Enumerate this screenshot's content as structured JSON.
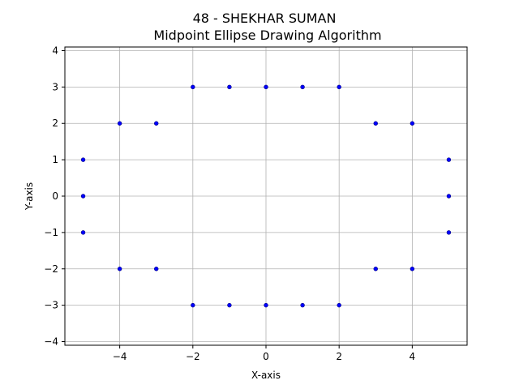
{
  "chart_data": {
    "type": "scatter",
    "title": "48 - SHEKHAR SUMAN",
    "subtitle": "Midpoint Ellipse Drawing Algorithm",
    "xlabel": "X-axis",
    "ylabel": "Y-axis",
    "xlim": [
      -5.5,
      5.5
    ],
    "ylim": [
      -4.1,
      4.1
    ],
    "xticks": [
      -4,
      -2,
      0,
      2,
      4
    ],
    "yticks": [
      -4,
      -3,
      -2,
      -1,
      0,
      1,
      2,
      3,
      4
    ],
    "xtick_labels": [
      "−4",
      "−2",
      "0",
      "2",
      "4"
    ],
    "ytick_labels": [
      "−4",
      "−3",
      "−2",
      "−1",
      "0",
      "1",
      "2",
      "3",
      "4"
    ],
    "grid": true,
    "marker_color": "#0000ff",
    "marker_edge_color": "#00007f",
    "points": [
      [
        -2,
        3
      ],
      [
        -1,
        3
      ],
      [
        0,
        3
      ],
      [
        1,
        3
      ],
      [
        2,
        3
      ],
      [
        -4,
        2
      ],
      [
        -3,
        2
      ],
      [
        3,
        2
      ],
      [
        4,
        2
      ],
      [
        -5,
        1
      ],
      [
        5,
        1
      ],
      [
        -5,
        0
      ],
      [
        5,
        0
      ],
      [
        -5,
        -1
      ],
      [
        5,
        -1
      ],
      [
        -4,
        -2
      ],
      [
        -3,
        -2
      ],
      [
        3,
        -2
      ],
      [
        4,
        -2
      ],
      [
        -2,
        -3
      ],
      [
        -1,
        -3
      ],
      [
        0,
        -3
      ],
      [
        1,
        -3
      ],
      [
        2,
        -3
      ]
    ]
  }
}
